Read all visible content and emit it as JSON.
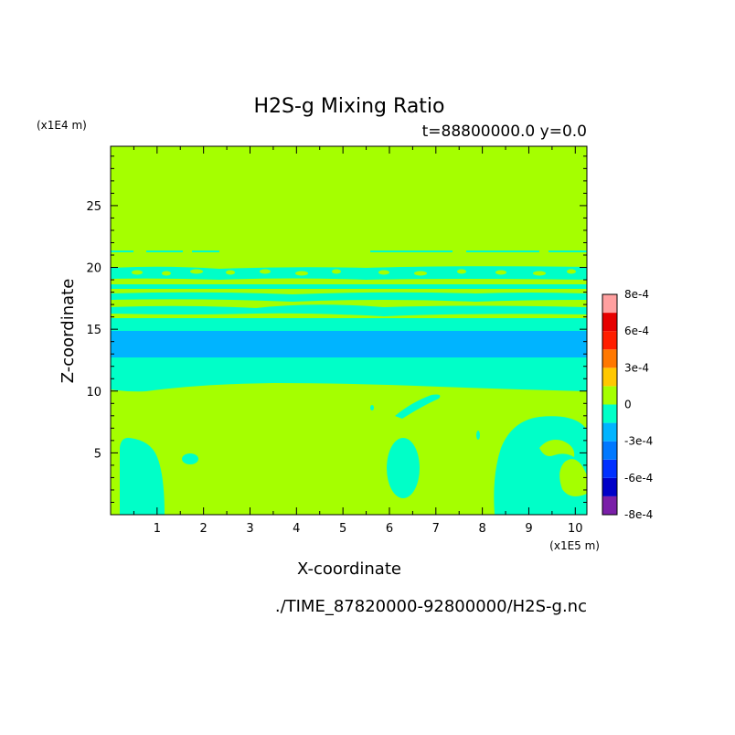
{
  "chart_data": {
    "type": "heatmap",
    "title": "H2S-g Mixing Ratio",
    "subtitle": "t=88800000.0 y=0.0",
    "xlabel": "X-coordinate",
    "ylabel": "Z-coordinate",
    "x_unit": "(x1E5 m)",
    "y_unit": "(x1E4 m)",
    "footer": "./TIME_87820000-92800000/H2S-g.nc",
    "xlim": [
      0,
      10.25
    ],
    "ylim": [
      0,
      29.8
    ],
    "x_ticks": [
      "1",
      "2",
      "3",
      "4",
      "5",
      "6",
      "7",
      "8",
      "9",
      "10"
    ],
    "y_ticks": [
      "5",
      "10",
      "15",
      "20",
      "25"
    ],
    "colorbar": {
      "labels": [
        "8e-4",
        "6e-4",
        "3e-4",
        "0",
        "-3e-4",
        "-6e-4",
        "-8e-4"
      ],
      "levels": [
        {
          "value": -0.0008,
          "color": "#7a1fa8"
        },
        {
          "value": -0.0007,
          "color": "#0000c8"
        },
        {
          "value": -0.0006,
          "color": "#0030ff"
        },
        {
          "value": -0.0004,
          "color": "#0078ff"
        },
        {
          "value": -0.0002,
          "color": "#00b4ff"
        },
        {
          "value": -0.0001,
          "color": "#00ffc8"
        },
        {
          "value": 0.0,
          "color": "#a5ff00"
        },
        {
          "value": 0.0002,
          "color": "#ffc800"
        },
        {
          "value": 0.0004,
          "color": "#ff7800"
        },
        {
          "value": 0.0006,
          "color": "#ff1e00"
        },
        {
          "value": 0.0007,
          "color": "#e60000"
        },
        {
          "value": 0.0008,
          "color": "#ffa0a0"
        }
      ]
    },
    "regions": [
      {
        "name": "background",
        "level": "0",
        "color": "#a5ff00"
      },
      {
        "name": "band",
        "z_range": [
          9.8,
          12.8
        ],
        "level": "-1e-4",
        "color": "#00ffc8"
      },
      {
        "name": "band",
        "z_range": [
          12.8,
          15.0
        ],
        "level": "-2e-4",
        "color": "#00b4ff"
      },
      {
        "name": "band",
        "z_range": [
          15.0,
          16.0
        ],
        "level": "-1e-4",
        "color": "#00ffc8"
      },
      {
        "name": "band",
        "z_range": [
          16.3,
          17.0
        ],
        "level": "-1e-4",
        "color": "#00ffc8"
      },
      {
        "name": "band",
        "z_range": [
          17.2,
          17.7
        ],
        "level": "-1e-4",
        "color": "#00ffc8"
      },
      {
        "name": "band",
        "z_range": [
          18.0,
          18.5
        ],
        "level": "-1e-4",
        "color": "#00ffc8"
      },
      {
        "name": "band",
        "z_range": [
          19.1,
          20.1
        ],
        "level": "-1e-4",
        "color": "#00ffc8"
      },
      {
        "name": "band",
        "z_range": [
          21.2,
          21.4
        ],
        "level": "-1e-4",
        "color": "#00ffc8"
      }
    ]
  }
}
